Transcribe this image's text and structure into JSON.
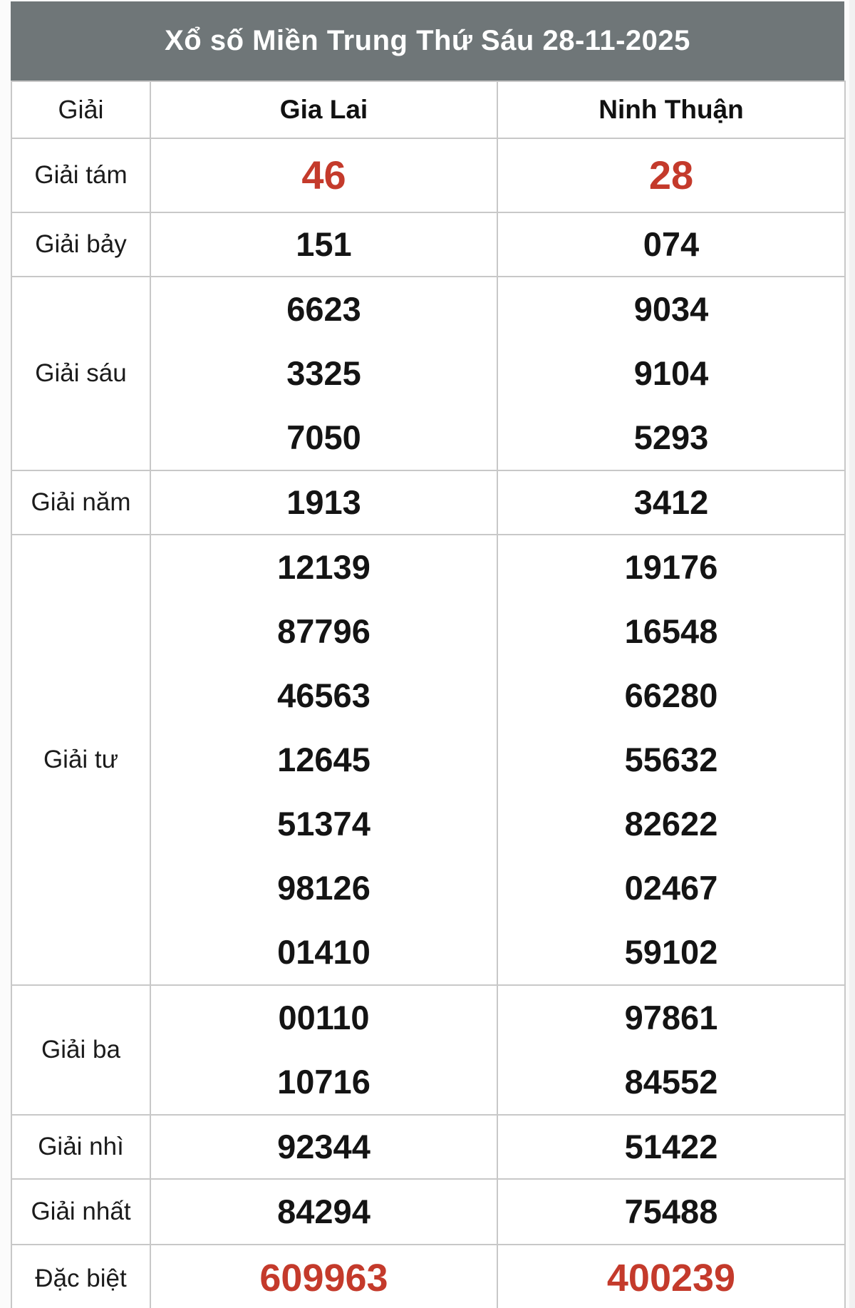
{
  "page": {
    "title": "Xổ số Miền Trung Thứ Sáu 28-11-2025"
  },
  "colors": {
    "title_bg": "#6f7678",
    "title_text": "#ffffff",
    "highlight_red": "#c43a2b",
    "number_black": "#141414",
    "border": "#c8c8c8"
  },
  "table": {
    "columns": [
      "Giải",
      "Gia Lai",
      "Ninh Thuận"
    ],
    "rows": [
      {
        "label": "Giải tám",
        "gia_lai": [
          "46"
        ],
        "ninh_thuan": [
          "28"
        ],
        "highlight": true,
        "size": "xl"
      },
      {
        "label": "Giải bảy",
        "gia_lai": [
          "151"
        ],
        "ninh_thuan": [
          "074"
        ],
        "highlight": false,
        "size": "sm"
      },
      {
        "label": "Giải sáu",
        "gia_lai": [
          "6623",
          "3325",
          "7050"
        ],
        "ninh_thuan": [
          "9034",
          "9104",
          "5293"
        ],
        "highlight": false,
        "size": "md"
      },
      {
        "label": "Giải năm",
        "gia_lai": [
          "1913"
        ],
        "ninh_thuan": [
          "3412"
        ],
        "highlight": false,
        "size": "sm"
      },
      {
        "label": "Giải tư",
        "gia_lai": [
          "12139",
          "87796",
          "46563",
          "12645",
          "51374",
          "98126",
          "01410"
        ],
        "ninh_thuan": [
          "19176",
          "16548",
          "66280",
          "55632",
          "82622",
          "02467",
          "59102"
        ],
        "highlight": false,
        "size": "md"
      },
      {
        "label": "Giải ba",
        "gia_lai": [
          "00110",
          "10716"
        ],
        "ninh_thuan": [
          "97861",
          "84552"
        ],
        "highlight": false,
        "size": "md"
      },
      {
        "label": "Giải nhì",
        "gia_lai": [
          "92344"
        ],
        "ninh_thuan": [
          "51422"
        ],
        "highlight": false,
        "size": "sm"
      },
      {
        "label": "Giải nhất",
        "gia_lai": [
          "84294"
        ],
        "ninh_thuan": [
          "75488"
        ],
        "highlight": false,
        "size": "md"
      },
      {
        "label": "Đặc biệt",
        "gia_lai": [
          "609963"
        ],
        "ninh_thuan": [
          "400239"
        ],
        "highlight": true,
        "size": "lg"
      }
    ]
  }
}
